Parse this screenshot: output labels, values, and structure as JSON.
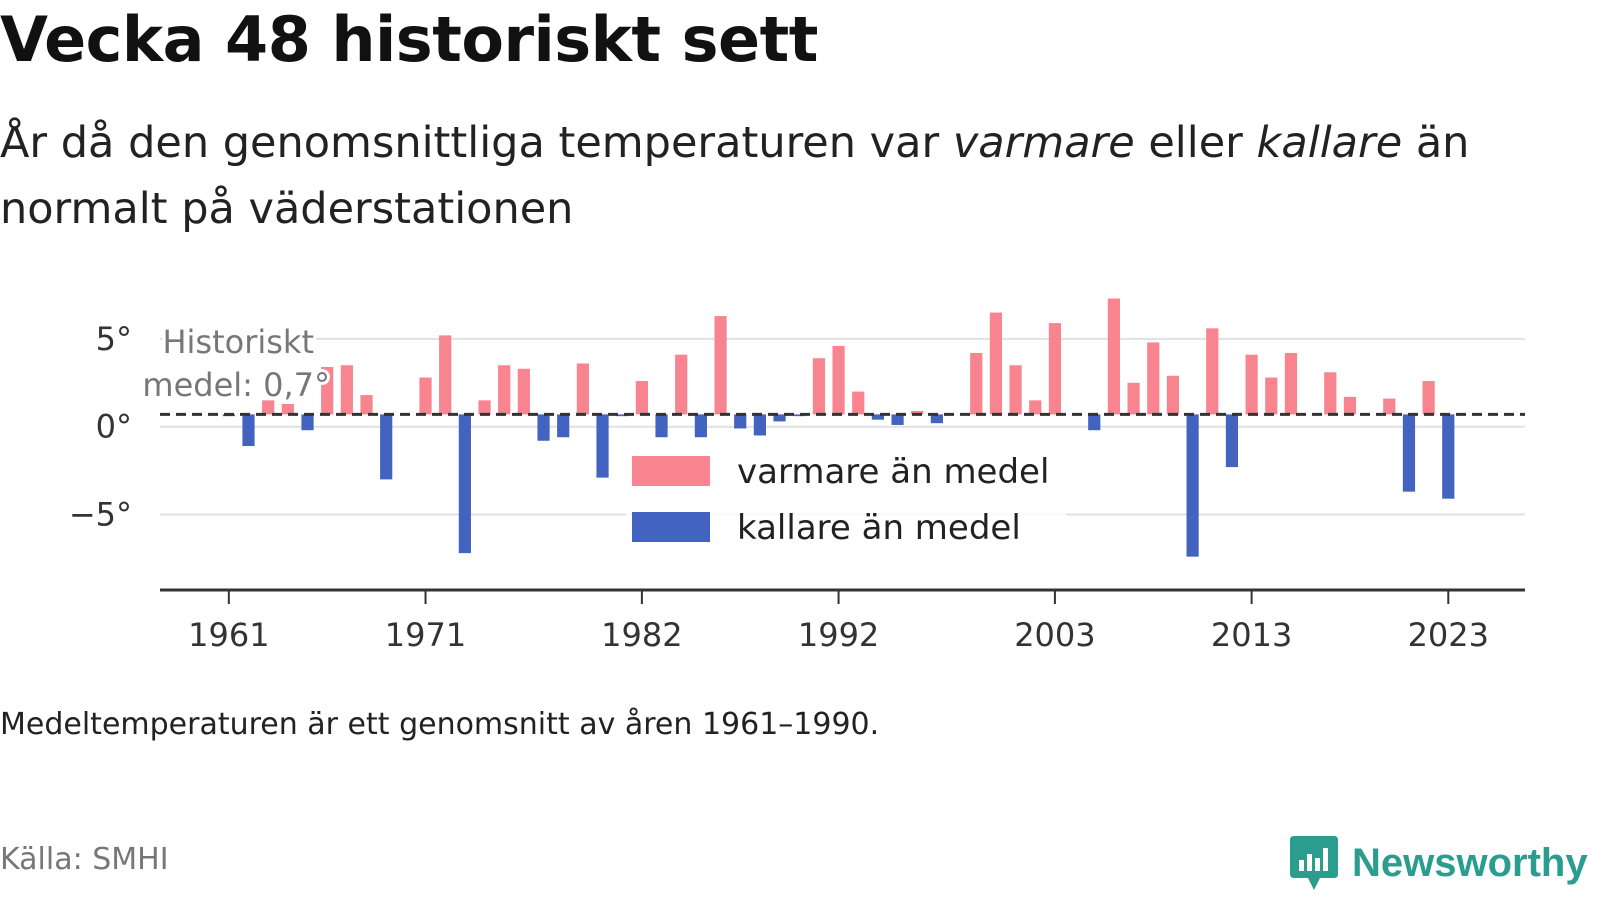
{
  "header": {
    "title": "Vecka 48 historiskt sett",
    "subtitle_part1": "År då den genomsnittliga temperaturen var ",
    "subtitle_warm": "varmare",
    "subtitle_part2": " eller ",
    "subtitle_cold": "kallare",
    "subtitle_part3": " än normalt på väderstationen"
  },
  "footer": {
    "note": "Medeltemperaturen är ett genomsnitt av åren 1961–1990.",
    "source": "Källa: SMHI",
    "brand": "Newsworthy"
  },
  "colors": {
    "warm": "#f7848f",
    "cold": "#4363c0",
    "brand": "#2a9d8f"
  },
  "chart_data": {
    "type": "bar",
    "baseline": 0.7,
    "baseline_label_line1": "Historiskt",
    "baseline_label_line2": "medel: 0,7°",
    "y_ticks": [
      {
        "value": 5,
        "label": "5°"
      },
      {
        "value": 0,
        "label": "0°"
      },
      {
        "value": -5,
        "label": "−5°"
      }
    ],
    "ylim": [
      -9.3,
      7.5
    ],
    "x_ticks": [
      1961,
      1971,
      1982,
      1992,
      2003,
      2013,
      2023
    ],
    "xlim": [
      1957.5,
      2026.9
    ],
    "legend": {
      "warm_label": "varmare än medel",
      "cold_label": "kallare än medel"
    },
    "years": [
      1961,
      1962,
      1963,
      1964,
      1965,
      1966,
      1967,
      1968,
      1969,
      1970,
      1971,
      1972,
      1973,
      1974,
      1975,
      1976,
      1977,
      1978,
      1979,
      1980,
      1981,
      1982,
      1983,
      1984,
      1985,
      1986,
      1987,
      1988,
      1989,
      1990,
      1991,
      1992,
      1993,
      1994,
      1995,
      1996,
      1997,
      1998,
      1999,
      2000,
      2001,
      2002,
      2003,
      2004,
      2005,
      2006,
      2007,
      2008,
      2009,
      2010,
      2011,
      2012,
      2013,
      2014,
      2015,
      2016,
      2017,
      2018,
      2019,
      2020,
      2021,
      2022,
      2023
    ],
    "values": [
      0.6,
      -1.1,
      1.5,
      1.3,
      -0.2,
      3.4,
      3.5,
      1.8,
      -3.0,
      0.7,
      2.8,
      5.2,
      -7.2,
      1.5,
      3.5,
      3.3,
      -0.8,
      -0.6,
      3.6,
      -2.9,
      0.6,
      2.6,
      -0.6,
      4.1,
      -0.6,
      6.3,
      -0.1,
      -0.5,
      0.3,
      0.6,
      3.9,
      4.6,
      2.0,
      0.4,
      0.1,
      0.9,
      0.2,
      0.7,
      4.2,
      6.5,
      3.5,
      1.5,
      5.9,
      0.7,
      -0.2,
      7.3,
      2.5,
      4.8,
      2.9,
      -7.4,
      5.6,
      -2.3,
      4.1,
      2.8,
      4.2,
      0.7,
      3.1,
      1.7,
      0.7,
      1.6,
      -3.7,
      2.6,
      -4.1
    ]
  }
}
